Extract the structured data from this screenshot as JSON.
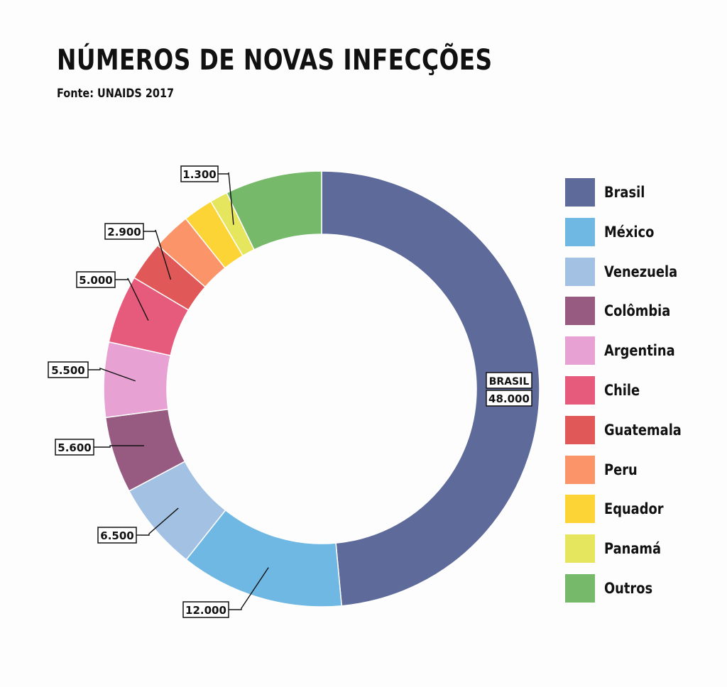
{
  "title": "NÚMEROS DE NOVAS INFECÇÕES",
  "subtitle": "Fonte: UNAIDS 2017",
  "chart_data": {
    "type": "pie",
    "donut": true,
    "start_angle_deg": 0,
    "direction": "clockwise",
    "slices": [
      {
        "name": "Brasil",
        "value": 48000,
        "label": "48.000",
        "label_prefix": "BRASIL",
        "color": "#5e6b9a"
      },
      {
        "name": "México",
        "value": 12000,
        "label": "12.000",
        "color": "#6fb8e3"
      },
      {
        "name": "Venezuela",
        "value": 6500,
        "label": "6.500",
        "color": "#a3c1e3"
      },
      {
        "name": "Colômbia",
        "value": 5600,
        "label": "5.600",
        "color": "#975a80"
      },
      {
        "name": "Argentina",
        "value": 5500,
        "label": "5.500",
        "color": "#e7a2d3"
      },
      {
        "name": "Chile",
        "value": 5000,
        "label": "5.000",
        "color": "#e65a7b"
      },
      {
        "name": "Guatemala",
        "value": 2900,
        "label": "2.900",
        "color": "#e15858"
      },
      {
        "name": "Peru",
        "value": 2800,
        "label": "",
        "color": "#fb9468"
      },
      {
        "name": "Equador",
        "value": 2200,
        "label": "",
        "color": "#fdd435"
      },
      {
        "name": "Panamá",
        "value": 1300,
        "label": "1.300",
        "color": "#e6e55e"
      },
      {
        "name": "Outros",
        "value": 7100,
        "label": "",
        "color": "#77b96b"
      }
    ],
    "legend_position": "right"
  }
}
